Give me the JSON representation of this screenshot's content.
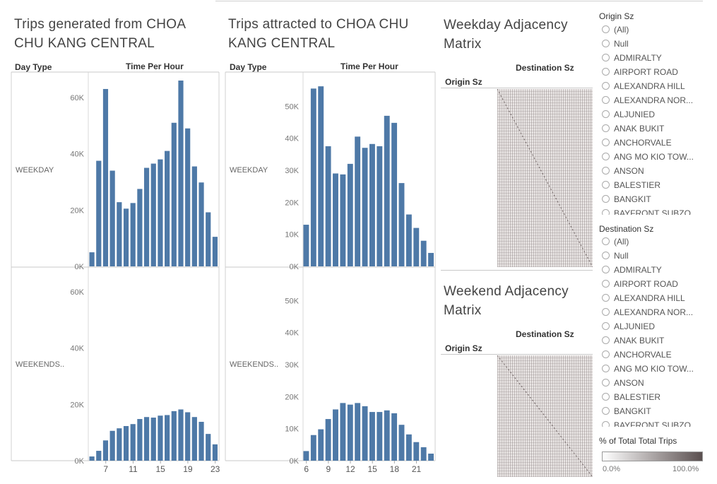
{
  "top_line_color": "#cccccc",
  "bar_color": "#4e79a7",
  "chart_data": [
    {
      "type": "bar",
      "title": "Trips generated from CHOA CHU KANG CENTRAL",
      "column_header_left": "Day Type",
      "column_header_right": "Time Per Hour",
      "xlabel": "Time Per Hour",
      "ylabel": "",
      "x_ticks": [
        "7",
        "11",
        "15",
        "19",
        "23"
      ],
      "x_tick_values": [
        7,
        11,
        15,
        19,
        23
      ],
      "y_ticks": [
        "0K",
        "20K",
        "40K",
        "60K"
      ],
      "y_tick_values": [
        0,
        20000,
        40000,
        60000
      ],
      "ylim": [
        0,
        66000
      ],
      "categories": [
        5,
        6,
        7,
        8,
        9,
        10,
        11,
        12,
        13,
        14,
        15,
        16,
        17,
        18,
        19,
        20,
        21,
        22,
        23
      ],
      "series": [
        {
          "name": "WEEKDAY",
          "values": [
            5000,
            37500,
            63000,
            34000,
            22800,
            20500,
            22500,
            27500,
            35000,
            36500,
            38000,
            41000,
            51000,
            66000,
            49000,
            35500,
            29800,
            19200,
            10500
          ]
        },
        {
          "name": "WEEKENDS..",
          "values": [
            1500,
            3500,
            7200,
            10600,
            11500,
            12300,
            13000,
            14800,
            15500,
            15300,
            16000,
            16200,
            17600,
            18200,
            17200,
            15500,
            13800,
            9500,
            5800
          ]
        }
      ]
    },
    {
      "type": "bar",
      "title": "Trips attracted to CHOA CHU KANG CENTRAL",
      "column_header_left": "Day Type",
      "column_header_right": "Time Per Hour",
      "xlabel": "Time Per Hour",
      "ylabel": "",
      "x_ticks": [
        "6",
        "9",
        "12",
        "15",
        "18",
        "21"
      ],
      "x_tick_values": [
        6,
        9,
        12,
        15,
        18,
        21
      ],
      "y_ticks": [
        "0K",
        "10K",
        "20K",
        "30K",
        "40K",
        "50K"
      ],
      "y_tick_values": [
        0,
        10000,
        20000,
        30000,
        40000,
        50000
      ],
      "ylim": [
        0,
        58000
      ],
      "categories": [
        6,
        7,
        8,
        9,
        10,
        11,
        12,
        13,
        14,
        15,
        16,
        17,
        18,
        19,
        20,
        21,
        22,
        23
      ],
      "series": [
        {
          "name": "WEEKDAY",
          "values": [
            13000,
            55500,
            56200,
            37500,
            29000,
            28700,
            32000,
            40500,
            37000,
            38200,
            37500,
            47000,
            44800,
            26000,
            16200,
            12000,
            8000,
            4200
          ]
        },
        {
          "name": "WEEKENDS..",
          "values": [
            3000,
            8000,
            9800,
            13000,
            16000,
            18000,
            17500,
            18000,
            17000,
            15200,
            15200,
            15700,
            14800,
            11200,
            8200,
            5800,
            4200,
            2200
          ]
        }
      ]
    }
  ],
  "weekday_matrix": {
    "title": "Weekday Adjacency Matrix",
    "column_header": "Destination Sz",
    "row_header": "Origin Sz"
  },
  "weekend_matrix": {
    "title": "Weekend Adjacency Matrix",
    "column_header": "Destination Sz",
    "row_header": "Origin Sz"
  },
  "origin_filter": {
    "title": "Origin Sz",
    "options": [
      "(All)",
      "Null",
      "ADMIRALTY",
      "AIRPORT ROAD",
      "ALEXANDRA HILL",
      "ALEXANDRA NOR...",
      "ALJUNIED",
      "ANAK BUKIT",
      "ANCHORVALE",
      "ANG MO KIO TOW...",
      "ANSON",
      "BALESTIER",
      "BANGKIT",
      "BAYFRONT SUBZO..."
    ]
  },
  "destination_filter": {
    "title": "Destination Sz",
    "options": [
      "(All)",
      "Null",
      "ADMIRALTY",
      "AIRPORT ROAD",
      "ALEXANDRA HILL",
      "ALEXANDRA NOR...",
      "ALJUNIED",
      "ANAK BUKIT",
      "ANCHORVALE",
      "ANG MO KIO TOW...",
      "ANSON",
      "BALESTIER",
      "BANGKIT",
      "BAYFRONT SUBZO..."
    ]
  },
  "legend": {
    "title": "% of Total Total Trips",
    "min_label": "0.0%",
    "max_label": "100.0%",
    "color_start": "#ffffff",
    "color_end": "#5a4f4f"
  }
}
